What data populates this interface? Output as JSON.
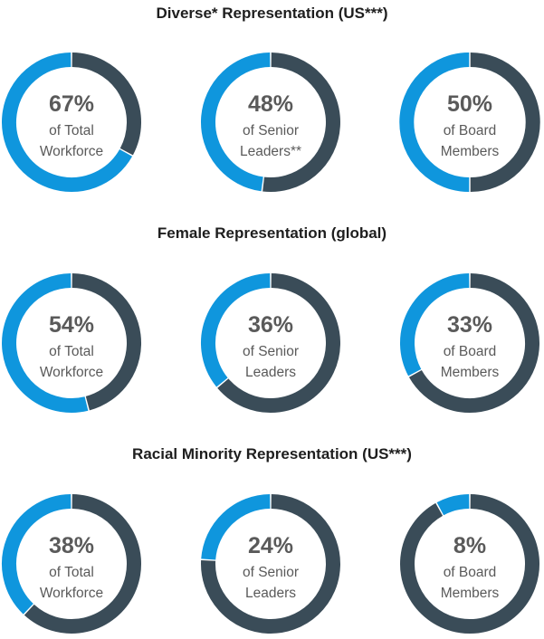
{
  "colors": {
    "accent": "#0f96dd",
    "remainder": "#3a4c58",
    "text": "#5a5a5a",
    "title": "#1e1e1e"
  },
  "chart_data": [
    {
      "type": "pie",
      "title": "Diverse* Representation (US***)",
      "items": [
        {
          "value": 67,
          "label": "67%",
          "line1": "of Total",
          "line2": "Workforce"
        },
        {
          "value": 48,
          "label": "48%",
          "line1": "of Senior",
          "line2": "Leaders**"
        },
        {
          "value": 50,
          "label": "50%",
          "line1": "of Board",
          "line2": "Members"
        }
      ]
    },
    {
      "type": "pie",
      "title": "Female Representation (global)",
      "items": [
        {
          "value": 54,
          "label": "54%",
          "line1": "of Total",
          "line2": "Workforce"
        },
        {
          "value": 36,
          "label": "36%",
          "line1": "of Senior",
          "line2": "Leaders"
        },
        {
          "value": 33,
          "label": "33%",
          "line1": "of Board",
          "line2": "Members"
        }
      ]
    },
    {
      "type": "pie",
      "title": "Racial Minority Representation (US***)",
      "items": [
        {
          "value": 38,
          "label": "38%",
          "line1": "of Total",
          "line2": "Workforce"
        },
        {
          "value": 24,
          "label": "24%",
          "line1": "of Senior",
          "line2": "Leaders"
        },
        {
          "value": 8,
          "label": "8%",
          "line1": "of Board",
          "line2": "Members"
        }
      ]
    }
  ]
}
